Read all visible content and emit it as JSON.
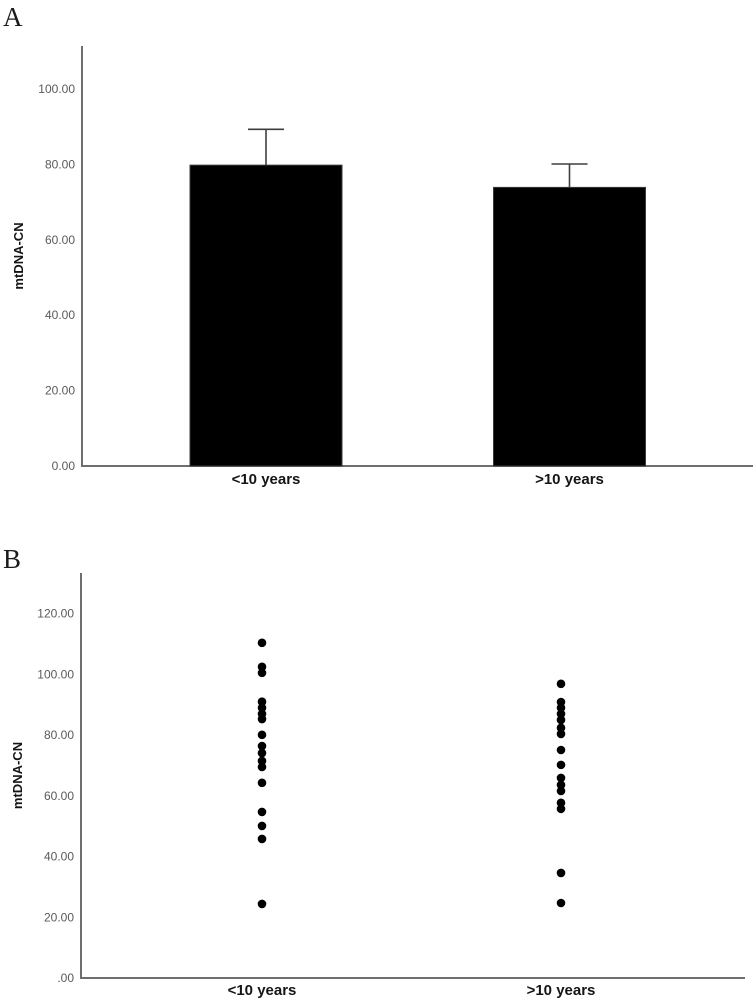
{
  "figure": {
    "panels": [
      {
        "label": "A"
      },
      {
        "label": "B"
      }
    ]
  },
  "colors": {
    "background": "#ffffff",
    "axis": "#6e6e6e",
    "tick_label": "#5a5a5a",
    "category_label": "#151515",
    "bar_fill": "#000000",
    "bar_stroke": "#3a3a3a",
    "error_bar": "#3f3f3f",
    "dot_fill": "#000000"
  },
  "chart_data": [
    {
      "type": "bar",
      "panel": "A",
      "title": "",
      "xlabel": "",
      "ylabel": "mtDNA-CN",
      "categories": [
        "<10 years",
        ">10 years"
      ],
      "values": [
        79.8,
        73.9
      ],
      "error_upper": [
        89.3,
        80.1
      ],
      "ylim": [
        0,
        111.4
      ],
      "yticks": [
        0,
        20,
        40,
        60,
        80,
        100
      ],
      "ytick_labels": [
        "0.00",
        "20.00",
        "40.00",
        "60.00",
        "80.00",
        "100.00"
      ],
      "grid": false,
      "legend": "none"
    },
    {
      "type": "scatter",
      "panel": "B",
      "title": "",
      "xlabel": "",
      "ylabel": "mtDNA-CN",
      "categories": [
        "<10 years",
        ">10 years"
      ],
      "series": [
        {
          "name": "<10 years",
          "values": [
            110.4,
            102.5,
            100.5,
            91.0,
            89.0,
            87.0,
            85.3,
            80.1,
            76.4,
            74.1,
            71.5,
            69.5,
            64.3,
            54.7,
            50.1,
            45.8,
            24.4
          ]
        },
        {
          "name": ">10 years",
          "values": [
            96.9,
            90.9,
            89.0,
            87.0,
            85.0,
            82.4,
            80.4,
            75.1,
            70.2,
            65.9,
            63.6,
            61.6,
            57.7,
            55.7,
            34.6,
            24.7
          ]
        }
      ],
      "ylim": [
        0,
        133.4
      ],
      "yticks": [
        0,
        20,
        40,
        60,
        80,
        100,
        120
      ],
      "ytick_labels": [
        ".00",
        "20.00",
        "40.00",
        "60.00",
        "80.00",
        "100.00",
        "120.00"
      ],
      "grid": false,
      "legend": "none"
    }
  ]
}
